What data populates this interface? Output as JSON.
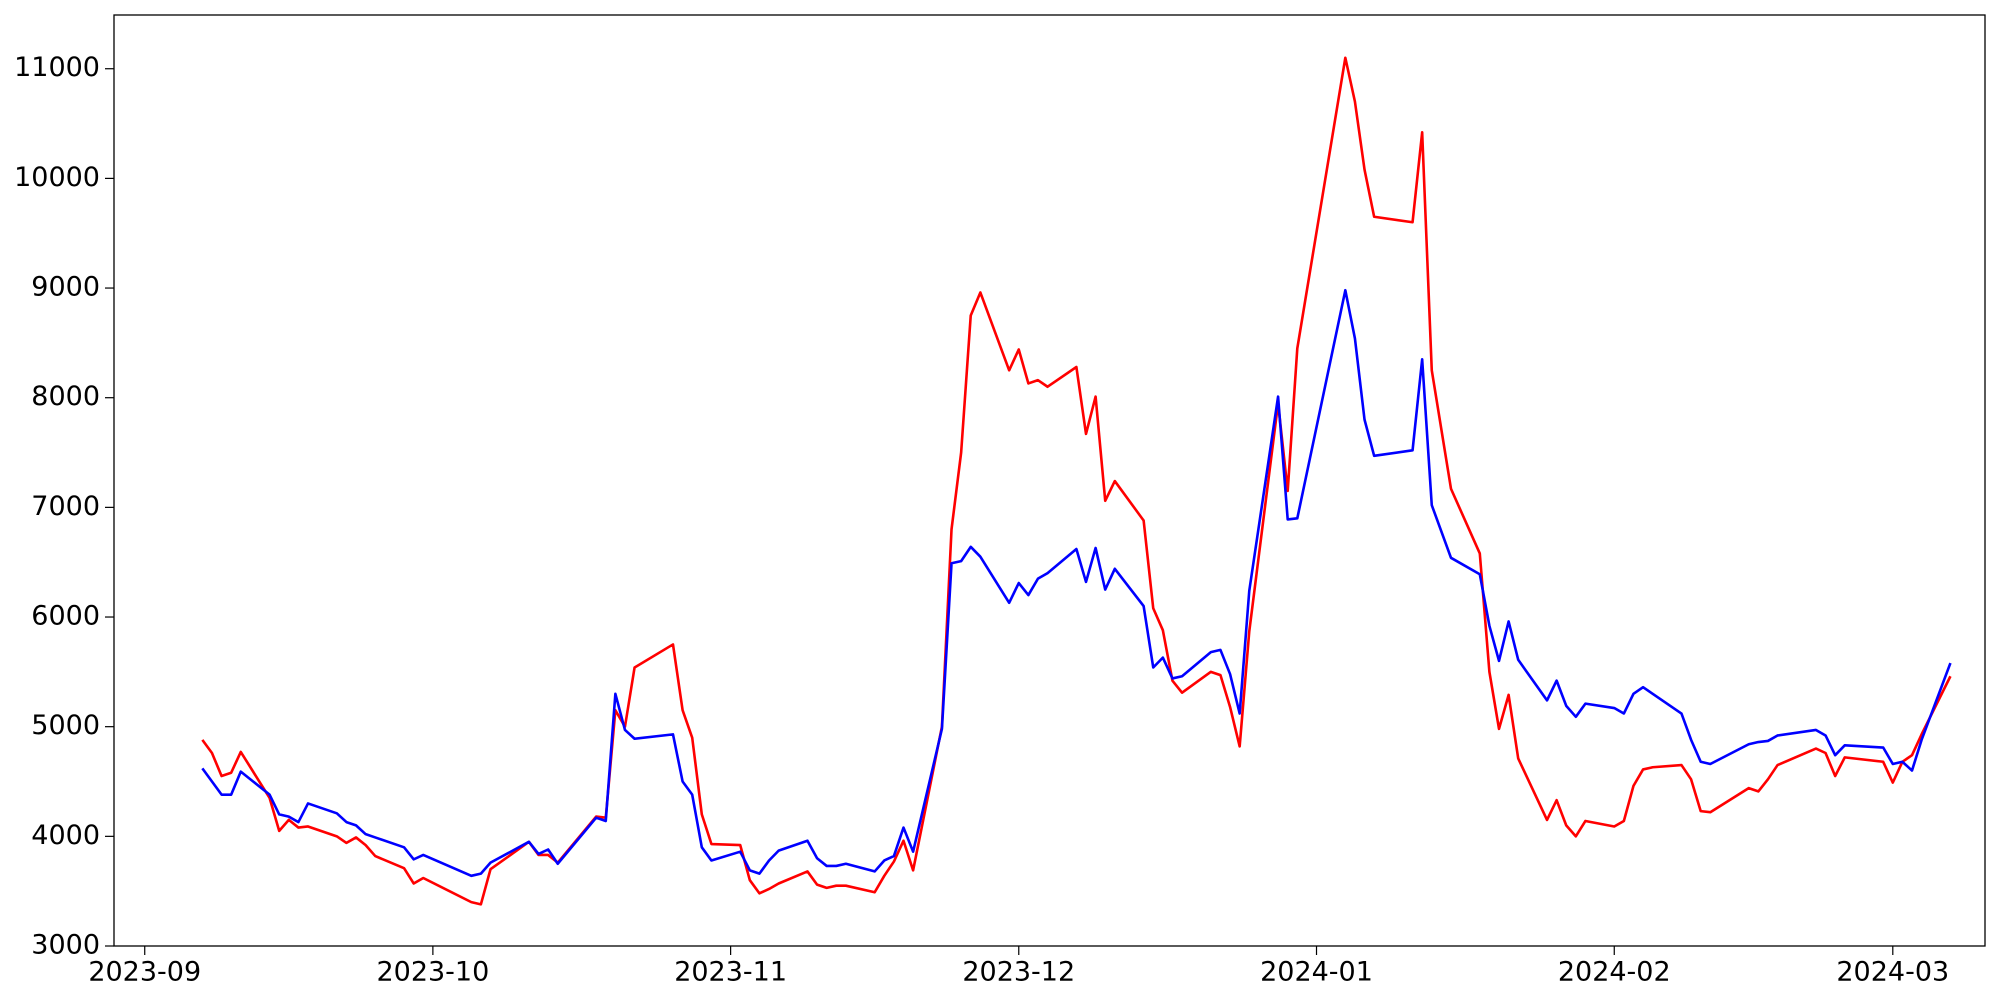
{
  "chart_data": {
    "type": "line",
    "x": [
      6,
      7,
      8,
      9,
      10,
      13,
      14,
      15,
      16,
      17,
      20,
      21,
      22,
      23,
      24,
      27,
      28,
      29,
      34,
      35,
      36,
      40,
      41,
      42,
      43,
      47,
      48,
      49,
      50,
      51,
      55,
      56,
      57,
      58,
      59,
      62,
      63,
      64,
      65,
      66,
      69,
      70,
      71,
      72,
      73,
      76,
      77,
      78,
      79,
      80,
      83,
      84,
      85,
      86,
      87,
      90,
      91,
      92,
      93,
      94,
      97,
      98,
      99,
      100,
      101,
      104,
      105,
      106,
      107,
      108,
      111,
      112,
      113,
      114,
      115,
      118,
      119,
      120,
      125,
      126,
      127,
      128,
      132,
      133,
      134,
      136,
      139,
      140,
      141,
      142,
      143,
      146,
      147,
      148,
      149,
      150,
      153,
      154,
      155,
      156,
      157,
      160,
      161,
      162,
      163,
      167,
      168,
      169,
      170,
      174,
      175,
      176,
      177,
      181,
      182,
      183,
      184,
      185,
      188
    ],
    "series": [
      {
        "color": "red",
        "values": [
          4880,
          4760,
          4550,
          4580,
          4770,
          4350,
          4050,
          4150,
          4080,
          4090,
          4000,
          3940,
          3990,
          3920,
          3820,
          3710,
          3570,
          3620,
          3400,
          3380,
          3700,
          3950,
          3830,
          3830,
          3760,
          4180,
          4170,
          5150,
          5000,
          5540,
          5750,
          5150,
          4900,
          4200,
          3930,
          3920,
          3600,
          3480,
          3520,
          3570,
          3680,
          3560,
          3530,
          3550,
          3550,
          3490,
          3640,
          3770,
          3960,
          3690,
          5000,
          6800,
          7500,
          8750,
          8960,
          8250,
          8440,
          8130,
          8160,
          8100,
          8280,
          7670,
          8010,
          7060,
          7240,
          6880,
          6080,
          5880,
          5420,
          5310,
          5500,
          5470,
          5180,
          4820,
          5870,
          7950,
          7150,
          8450,
          11100,
          10700,
          10080,
          9650,
          9600,
          10420,
          8250,
          7170,
          6580,
          5500,
          4980,
          5290,
          4710,
          4150,
          4330,
          4100,
          4000,
          4140,
          4090,
          4140,
          4460,
          4610,
          4630,
          4650,
          4520,
          4230,
          4220,
          4440,
          4410,
          4520,
          4650,
          4800,
          4760,
          4550,
          4720,
          4680,
          4490,
          4680,
          4740,
          4930,
          5460
        ]
      },
      {
        "color": "blue",
        "values": [
          4620,
          4500,
          4380,
          4380,
          4590,
          4380,
          4200,
          4180,
          4130,
          4300,
          4210,
          4130,
          4100,
          4020,
          3990,
          3900,
          3790,
          3830,
          3640,
          3660,
          3760,
          3950,
          3840,
          3880,
          3750,
          4170,
          4140,
          5300,
          4970,
          4890,
          4930,
          4500,
          4380,
          3900,
          3780,
          3860,
          3690,
          3660,
          3780,
          3870,
          3960,
          3800,
          3730,
          3730,
          3750,
          3680,
          3780,
          3820,
          4080,
          3860,
          4980,
          6490,
          6510,
          6640,
          6550,
          6130,
          6310,
          6200,
          6350,
          6400,
          6620,
          6320,
          6630,
          6250,
          6440,
          6100,
          5540,
          5630,
          5440,
          5460,
          5680,
          5700,
          5480,
          5120,
          6240,
          8010,
          6890,
          6900,
          8980,
          8540,
          7800,
          7470,
          7520,
          8350,
          7020,
          6540,
          6390,
          5920,
          5600,
          5960,
          5610,
          5240,
          5420,
          5190,
          5090,
          5210,
          5170,
          5120,
          5300,
          5360,
          5300,
          5120,
          4880,
          4680,
          4660,
          4840,
          4860,
          4870,
          4920,
          4970,
          4920,
          4740,
          4830,
          4810,
          4660,
          4680,
          4600,
          4880,
          5580
        ]
      }
    ],
    "xlim": [
      -3.2,
      191.6
    ],
    "xticks": [
      {
        "value": 0,
        "label": "2023-09"
      },
      {
        "value": 30,
        "label": "2023-10"
      },
      {
        "value": 61,
        "label": "2023-11"
      },
      {
        "value": 91,
        "label": "2023-12"
      },
      {
        "value": 122,
        "label": "2024-01"
      },
      {
        "value": 153,
        "label": "2024-02"
      },
      {
        "value": 182,
        "label": "2024-03"
      }
    ],
    "ylim": [
      3000,
      11490
    ],
    "yticks": [
      3000,
      4000,
      5000,
      6000,
      7000,
      8000,
      9000,
      10000,
      11000
    ],
    "grid": false
  }
}
